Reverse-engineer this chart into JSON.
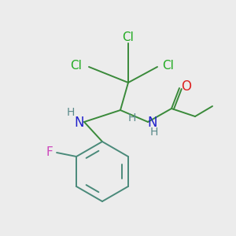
{
  "background_color": "#ececec",
  "colors": {
    "Cl": "#22aa22",
    "N": "#2222cc",
    "H": "#5a8a8a",
    "O": "#dd2222",
    "F": "#cc44bb",
    "bond": "#3a8a3a",
    "ring": "#4a8a7a"
  },
  "figsize": [
    3.0,
    3.0
  ],
  "dpi": 100
}
